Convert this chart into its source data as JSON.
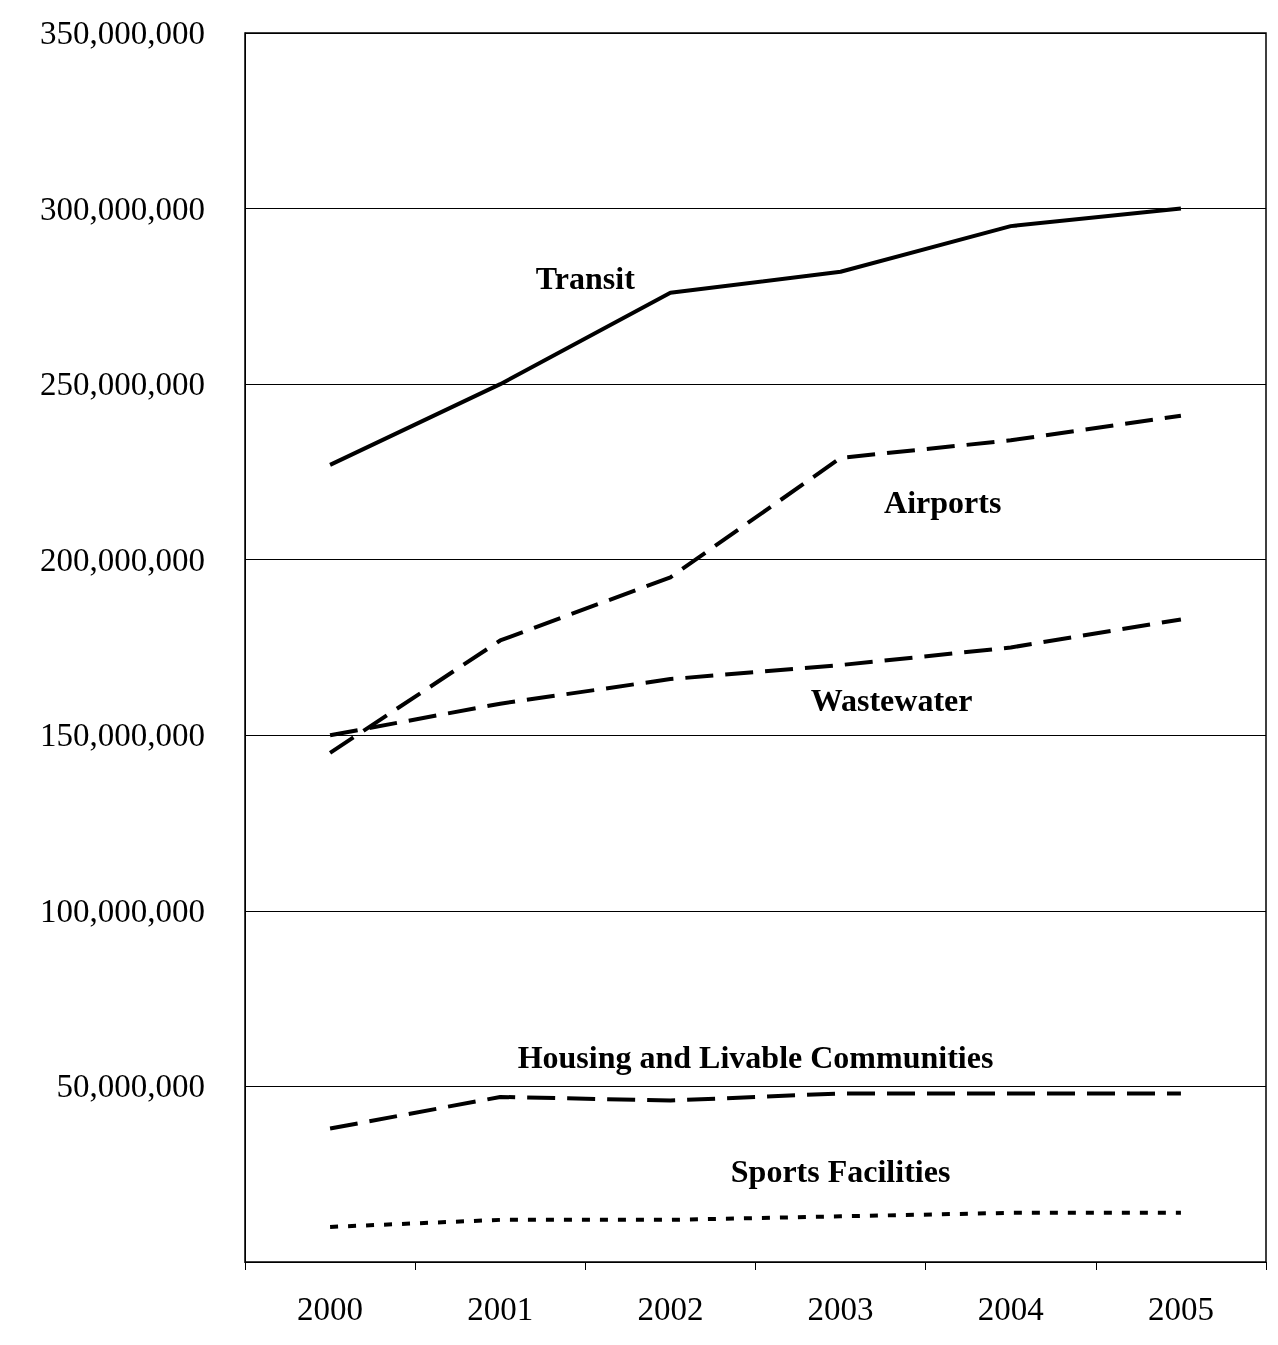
{
  "chart_data": {
    "type": "line",
    "categories": [
      "2000",
      "2001",
      "2002",
      "2003",
      "2004",
      "2005"
    ],
    "series": [
      {
        "name": "Transit",
        "color": "#000000",
        "line_style": "solid",
        "values": [
          227000000,
          250000000,
          276000000,
          282000000,
          295000000,
          300000000
        ]
      },
      {
        "name": "Airports",
        "color": "#000000",
        "line_style": "dashed",
        "values": [
          145000000,
          177000000,
          195000000,
          229000000,
          234000000,
          241000000
        ]
      },
      {
        "name": "Wastewater",
        "color": "#000000",
        "line_style": "dashed",
        "values": [
          150000000,
          159000000,
          166000000,
          170000000,
          175000000,
          183000000
        ]
      },
      {
        "name": "Housing and Livable Communities",
        "color": "#000000",
        "line_style": "dashed",
        "values": [
          38000000,
          47000000,
          46000000,
          48000000,
          48000000,
          48000000
        ]
      },
      {
        "name": "Sports Facilities",
        "color": "#000000",
        "line_style": "dotted",
        "values": [
          10000000,
          12000000,
          12000000,
          13000000,
          14000000,
          14000000
        ]
      }
    ],
    "ylim": [
      0,
      350000000
    ],
    "yticks": [
      {
        "value": 0,
        "label": null
      },
      {
        "value": 50000000,
        "label": "50,000,000"
      },
      {
        "value": 100000000,
        "label": "100,000,000"
      },
      {
        "value": 150000000,
        "label": "150,000,000"
      },
      {
        "value": 200000000,
        "label": "200,000,000"
      },
      {
        "value": 250000000,
        "label": "250,000,000"
      },
      {
        "value": 300000000,
        "label": "300,000,000"
      },
      {
        "value": 350000000,
        "label": "350,000,000"
      }
    ],
    "grid": "y",
    "legend": false,
    "marker": "none"
  }
}
